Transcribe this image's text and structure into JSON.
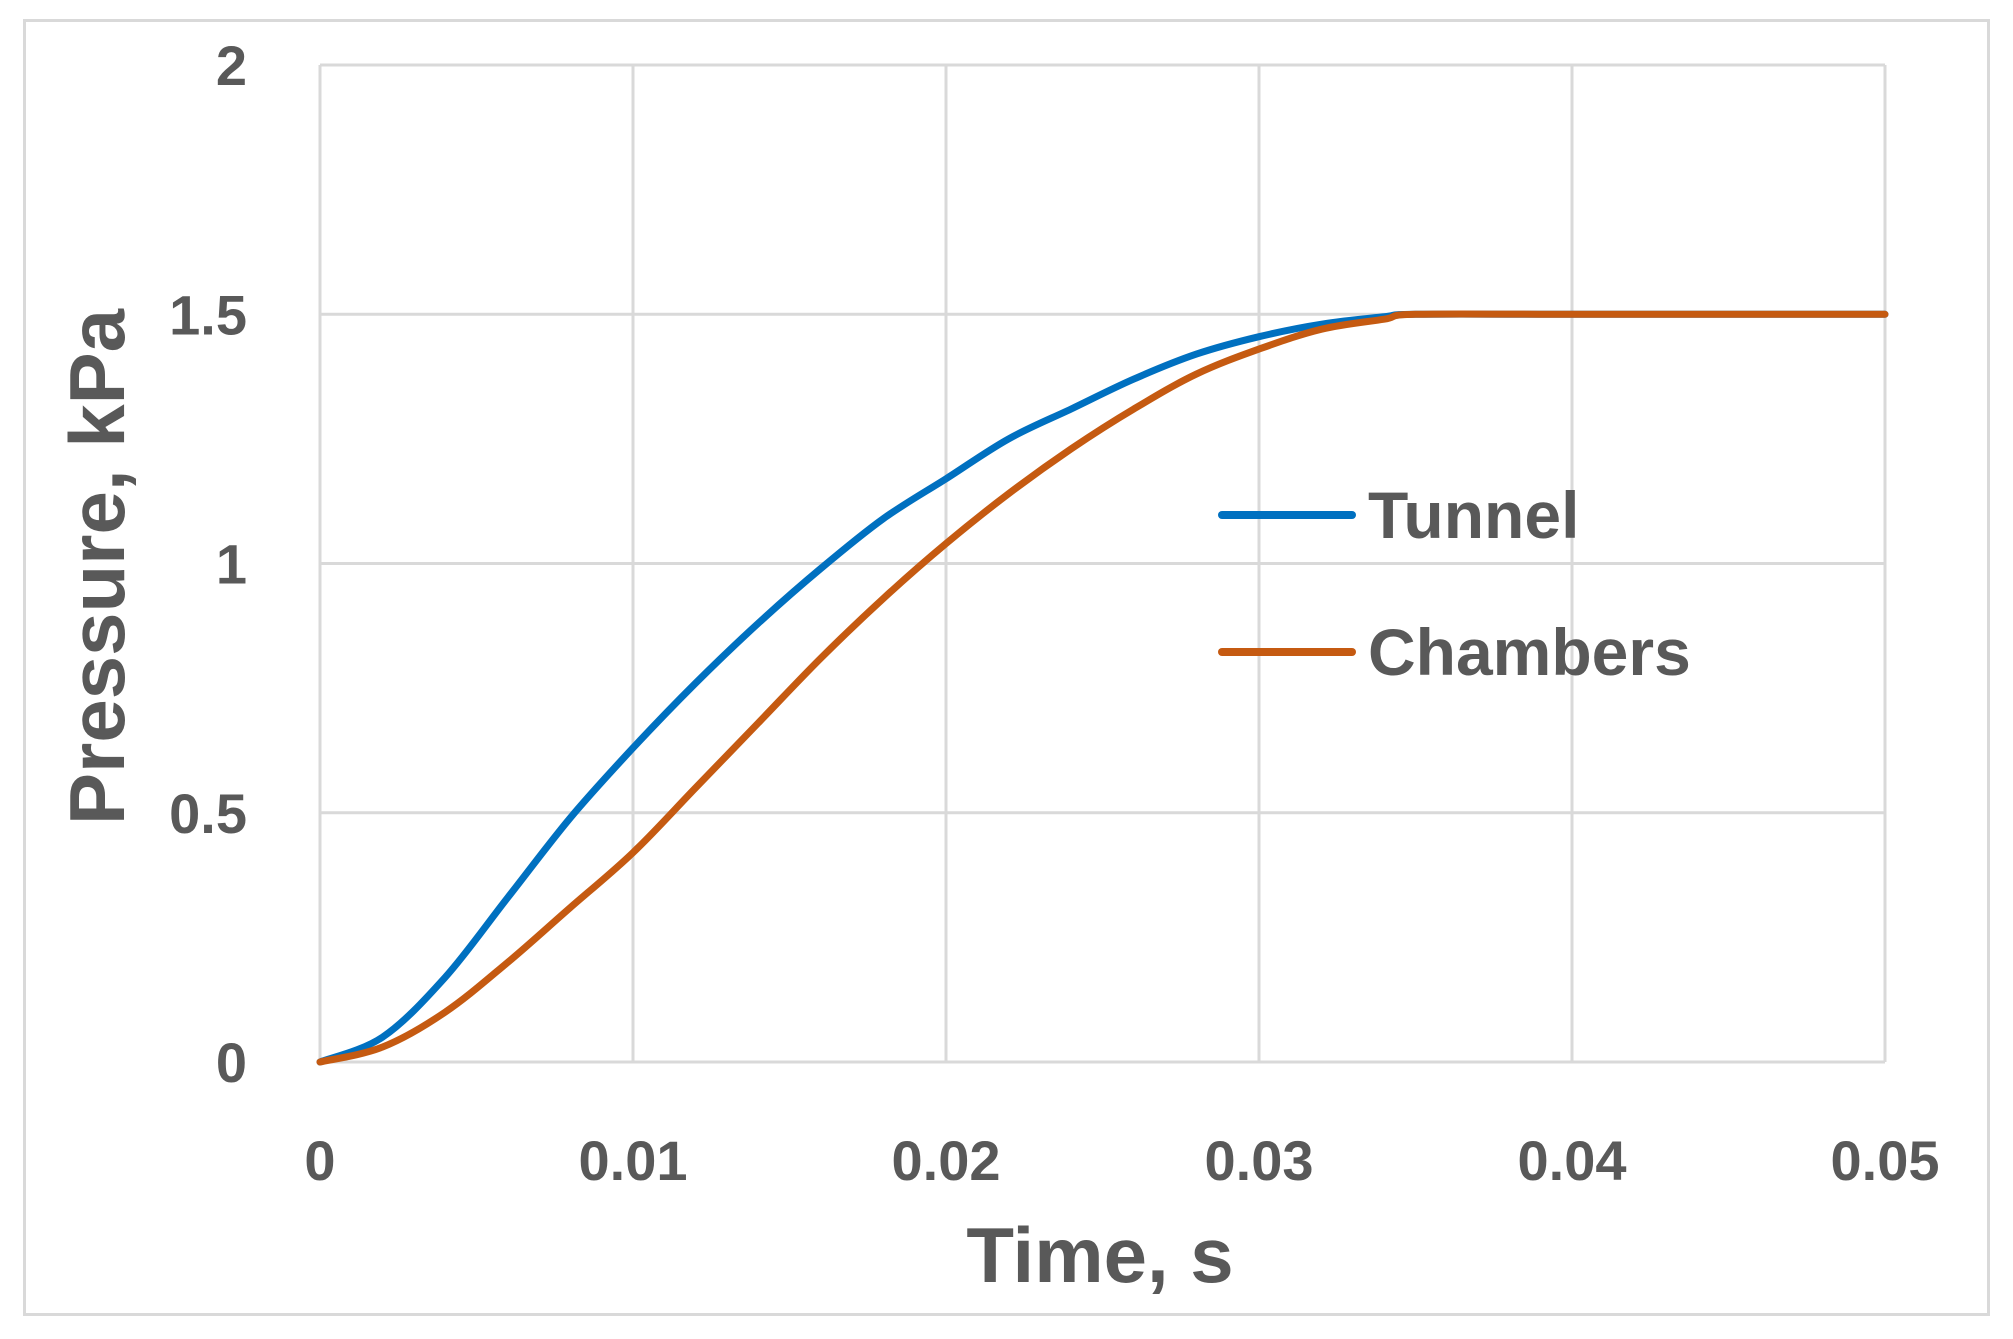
{
  "chart_data": {
    "type": "line",
    "xlabel": "Time, s",
    "ylabel": "Pressure, kPa",
    "xlim": [
      0,
      0.05
    ],
    "ylim": [
      0,
      2
    ],
    "x_ticks": [
      "0",
      "0.01",
      "0.02",
      "0.03",
      "0.04",
      "0.05"
    ],
    "y_ticks": [
      "0",
      "0.5",
      "1",
      "1.5",
      "2"
    ],
    "grid": true,
    "legend_position": "right-middle",
    "series": [
      {
        "name": "Tunnel",
        "color": "#0070C0",
        "x": [
          0,
          0.002,
          0.004,
          0.006,
          0.008,
          0.01,
          0.012,
          0.014,
          0.016,
          0.018,
          0.02,
          0.022,
          0.024,
          0.026,
          0.028,
          0.03,
          0.032,
          0.034,
          0.035,
          0.04,
          0.045,
          0.05
        ],
        "y": [
          0,
          0.05,
          0.17,
          0.33,
          0.49,
          0.63,
          0.76,
          0.88,
          0.99,
          1.09,
          1.17,
          1.25,
          1.31,
          1.37,
          1.42,
          1.455,
          1.48,
          1.495,
          1.5,
          1.5,
          1.5,
          1.5
        ]
      },
      {
        "name": "Chambers",
        "color": "#C55A11",
        "x": [
          0,
          0.002,
          0.004,
          0.006,
          0.008,
          0.01,
          0.012,
          0.014,
          0.016,
          0.018,
          0.02,
          0.022,
          0.024,
          0.026,
          0.028,
          0.03,
          0.032,
          0.034,
          0.035,
          0.04,
          0.045,
          0.05
        ],
        "y": [
          0,
          0.03,
          0.1,
          0.2,
          0.31,
          0.42,
          0.55,
          0.68,
          0.81,
          0.93,
          1.04,
          1.14,
          1.23,
          1.31,
          1.38,
          1.43,
          1.47,
          1.49,
          1.5,
          1.5,
          1.5,
          1.5
        ]
      }
    ]
  }
}
